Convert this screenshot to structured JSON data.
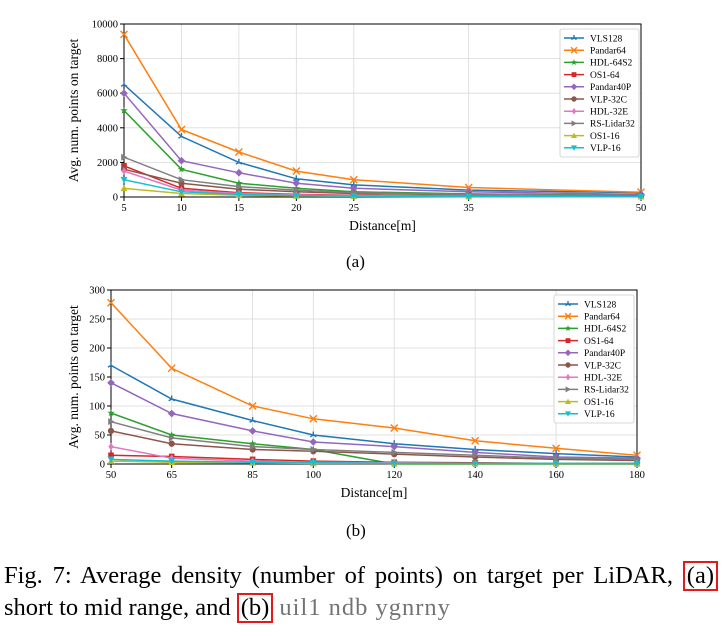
{
  "figure": {
    "subfigure_a_label": "(a)",
    "subfigure_b_label": "(b)",
    "caption_main": "Fig. 7: Average density (number of points) on target per LiDAR,",
    "caption_ref_a": "(a)",
    "caption_mid": "short to mid range, and",
    "caption_ref_b": "(b)",
    "caption_tail": "uil1 ndb ygnrny"
  },
  "colors": {
    "VLS128": "#1f77b4",
    "Pandar64": "#ff7f0e",
    "HDL-64S2": "#2ca02c",
    "OS1-64": "#d62728",
    "Pandar40P": "#9467bd",
    "VLP-32C": "#8c564b",
    "HDL-32E": "#e377c2",
    "RS-Lidar32": "#7f7f7f",
    "OS1-16": "#bcbd22",
    "VLP-16": "#17becf",
    "highlight": "#e31a1c"
  },
  "chart_data": [
    {
      "type": "line",
      "xlabel": "Distance[m]",
      "ylabel": "Avg. num. points on target",
      "xlim": [
        5,
        50
      ],
      "ylim": [
        0,
        10000
      ],
      "xticks": [
        5,
        10,
        15,
        20,
        25,
        35,
        50
      ],
      "yticks": [
        0,
        2000,
        4000,
        6000,
        8000,
        10000
      ],
      "grid": true,
      "legend_position": "upper-right",
      "x": [
        5,
        10,
        15,
        20,
        25,
        35,
        50
      ],
      "series": [
        {
          "name": "VLS128",
          "marker": "tri",
          "values": [
            6500,
            3500,
            2000,
            1050,
            700,
            400,
            250
          ]
        },
        {
          "name": "Pandar64",
          "marker": "x",
          "values": [
            9400,
            3900,
            2600,
            1500,
            1000,
            550,
            280
          ]
        },
        {
          "name": "HDL-64S2",
          "marker": "star",
          "values": [
            5000,
            1600,
            800,
            500,
            300,
            180,
            100
          ]
        },
        {
          "name": "OS1-64",
          "marker": "square",
          "values": [
            1800,
            500,
            250,
            150,
            100,
            60,
            40
          ]
        },
        {
          "name": "Pandar40P",
          "marker": "diamond",
          "values": [
            6000,
            2100,
            1400,
            800,
            500,
            300,
            150
          ]
        },
        {
          "name": "VLP-32C",
          "marker": "circle",
          "values": [
            1600,
            800,
            450,
            300,
            200,
            130,
            80
          ]
        },
        {
          "name": "HDL-32E",
          "marker": "thin-diamond",
          "values": [
            1500,
            400,
            200,
            120,
            80,
            50,
            30
          ]
        },
        {
          "name": "RS-Lidar32",
          "marker": "triangle-right",
          "values": [
            2300,
            1000,
            600,
            400,
            250,
            150,
            80
          ]
        },
        {
          "name": "OS1-16",
          "marker": "triangle-up",
          "values": [
            500,
            200,
            100,
            60,
            40,
            25,
            15
          ]
        },
        {
          "name": "VLP-16",
          "marker": "triangle-down",
          "values": [
            1000,
            300,
            150,
            80,
            50,
            30,
            15
          ]
        }
      ]
    },
    {
      "type": "line",
      "xlabel": "Distance[m]",
      "ylabel": "Avg. num. points on target",
      "xlim": [
        50,
        180
      ],
      "ylim": [
        0,
        300
      ],
      "xticks": [
        50,
        65,
        85,
        100,
        120,
        140,
        160,
        180
      ],
      "yticks": [
        0,
        50,
        100,
        150,
        200,
        250,
        300
      ],
      "grid": true,
      "legend_position": "upper-right",
      "x": [
        50,
        65,
        85,
        100,
        120,
        140,
        160,
        180
      ],
      "series": [
        {
          "name": "VLS128",
          "marker": "tri",
          "values": [
            170,
            112,
            75,
            50,
            35,
            25,
            18,
            12
          ]
        },
        {
          "name": "Pandar64",
          "marker": "x",
          "values": [
            278,
            165,
            100,
            78,
            62,
            40,
            27,
            15
          ]
        },
        {
          "name": "HDL-64S2",
          "marker": "star",
          "values": [
            88,
            50,
            35,
            25,
            0,
            0,
            0,
            0
          ]
        },
        {
          "name": "OS1-64",
          "marker": "square",
          "values": [
            15,
            13,
            8,
            5,
            3,
            2,
            1,
            1
          ]
        },
        {
          "name": "Pandar40P",
          "marker": "diamond",
          "values": [
            140,
            87,
            57,
            38,
            30,
            20,
            12,
            10
          ]
        },
        {
          "name": "VLP-32C",
          "marker": "circle",
          "values": [
            57,
            35,
            25,
            22,
            17,
            12,
            8,
            6
          ]
        },
        {
          "name": "HDL-32E",
          "marker": "thin-diamond",
          "values": [
            30,
            10,
            5,
            3,
            2,
            1,
            1,
            1
          ]
        },
        {
          "name": "RS-Lidar32",
          "marker": "triangle-right",
          "values": [
            73,
            45,
            30,
            25,
            20,
            15,
            10,
            8
          ]
        },
        {
          "name": "OS1-16",
          "marker": "triangle-up",
          "values": [
            5,
            3,
            2,
            1,
            1,
            1,
            1,
            1
          ]
        },
        {
          "name": "VLP-16",
          "marker": "triangle-down",
          "values": [
            8,
            5,
            3,
            2,
            1,
            1,
            1,
            1
          ]
        }
      ]
    }
  ]
}
